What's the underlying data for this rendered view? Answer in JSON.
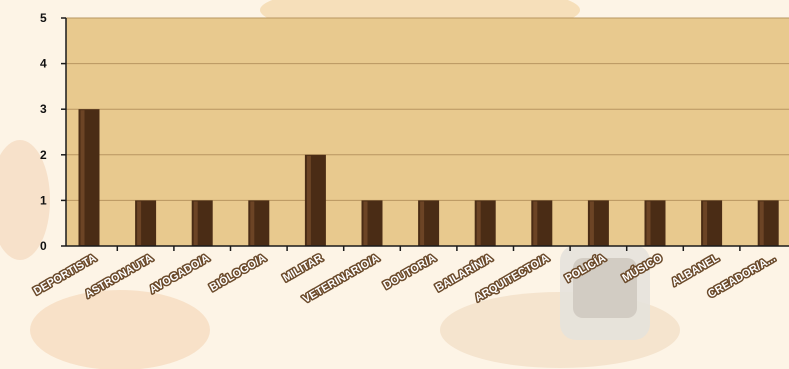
{
  "chart_data": {
    "type": "bar",
    "title": "",
    "xlabel": "",
    "ylabel": "",
    "categories": [
      "DEPORTISTA",
      "ASTRONAUTA",
      "AVOGADO/A",
      "BIÓLOGO/A",
      "MILITAR",
      "VETERINARIO/A",
      "DOUTOR/A",
      "BAILARÍN/A",
      "ARQUITECTO/A",
      "POLICÍA",
      "MÚSICO",
      "ALBANEL",
      "CREADOR/A..."
    ],
    "values": [
      3,
      1,
      1,
      1,
      2,
      1,
      1,
      1,
      1,
      1,
      1,
      1,
      1
    ],
    "ylim": [
      0,
      5
    ],
    "yticks": [
      "0",
      "1",
      "2",
      "3",
      "4",
      "5"
    ],
    "grid": true,
    "legend": "none",
    "colors": {
      "plot_background": "#e8c98e",
      "bar": "#4a2c15",
      "bar_highlight": "#7a4f2c",
      "gridline": "#b89660",
      "axis": "#1a1a1a",
      "label_outline": "#6b4a2a"
    }
  }
}
